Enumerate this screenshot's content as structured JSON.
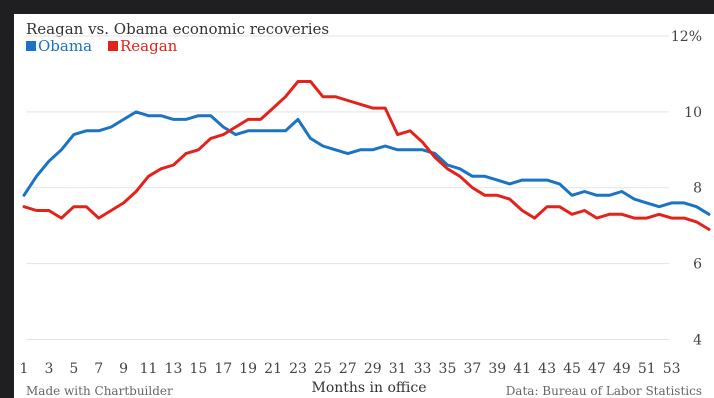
{
  "chart_data": {
    "type": "line",
    "title": "Reagan vs. Obama economic recoveries",
    "xlabel": "Months in office",
    "ylabel": "",
    "xlim": [
      1,
      56
    ],
    "ylim": [
      3.3,
      12
    ],
    "grid": true,
    "legend_position": "top-left",
    "y_ticks": [
      "4",
      "6",
      "8",
      "10",
      "12%"
    ],
    "y_tick_values": [
      4,
      6,
      8,
      10,
      12
    ],
    "x_ticks": [
      "1",
      "3",
      "5",
      "7",
      "9",
      "11",
      "13",
      "15",
      "17",
      "19",
      "21",
      "23",
      "25",
      "27",
      "29",
      "31",
      "33",
      "35",
      "37",
      "39",
      "41",
      "43",
      "45",
      "47",
      "49",
      "51",
      "53"
    ],
    "x_tick_values": [
      1,
      3,
      5,
      7,
      9,
      11,
      13,
      15,
      17,
      19,
      21,
      23,
      25,
      27,
      29,
      31,
      33,
      35,
      37,
      39,
      41,
      43,
      45,
      47,
      49,
      51,
      53
    ],
    "x": [
      1,
      2,
      3,
      4,
      5,
      6,
      7,
      8,
      9,
      10,
      11,
      12,
      13,
      14,
      15,
      16,
      17,
      18,
      19,
      20,
      21,
      22,
      23,
      24,
      25,
      26,
      27,
      28,
      29,
      30,
      31,
      32,
      33,
      34,
      35,
      36,
      37,
      38,
      39,
      40,
      41,
      42,
      43,
      44,
      45,
      46,
      47,
      48,
      49,
      50,
      51,
      52,
      53,
      54,
      55,
      56
    ],
    "series": [
      {
        "name": "Obama",
        "color": "#1a73c4",
        "values": [
          7.8,
          8.3,
          8.7,
          9.0,
          9.4,
          9.5,
          9.5,
          9.6,
          9.8,
          10.0,
          9.9,
          9.9,
          9.8,
          9.8,
          9.9,
          9.9,
          9.6,
          9.4,
          9.5,
          9.5,
          9.5,
          9.5,
          9.8,
          9.3,
          9.1,
          9.0,
          8.9,
          9.0,
          9.0,
          9.1,
          9.0,
          9.0,
          9.0,
          8.9,
          8.6,
          8.5,
          8.3,
          8.3,
          8.2,
          8.1,
          8.2,
          8.2,
          8.2,
          8.1,
          7.8,
          7.9,
          7.8,
          7.8,
          7.9,
          7.7,
          7.6,
          7.5,
          7.6,
          7.6,
          7.5,
          7.3
        ]
      },
      {
        "name": "Reagan",
        "color": "#e3231b",
        "values": [
          7.5,
          7.4,
          7.4,
          7.2,
          7.5,
          7.5,
          7.2,
          7.4,
          7.6,
          7.9,
          8.3,
          8.5,
          8.6,
          8.9,
          9.0,
          9.3,
          9.4,
          9.6,
          9.8,
          9.8,
          10.1,
          10.4,
          10.8,
          10.8,
          10.4,
          10.4,
          10.3,
          10.2,
          10.1,
          10.1,
          9.4,
          9.5,
          9.2,
          8.8,
          8.5,
          8.3,
          8.0,
          7.8,
          7.8,
          7.7,
          7.4,
          7.2,
          7.5,
          7.5,
          7.3,
          7.4,
          7.2,
          7.3,
          7.3,
          7.2,
          7.2,
          7.3,
          7.2,
          7.2,
          7.1,
          6.9
        ]
      }
    ]
  },
  "footer": {
    "left": "Made with Chartbuilder",
    "right": "Data: Bureau of Labor Statistics"
  }
}
